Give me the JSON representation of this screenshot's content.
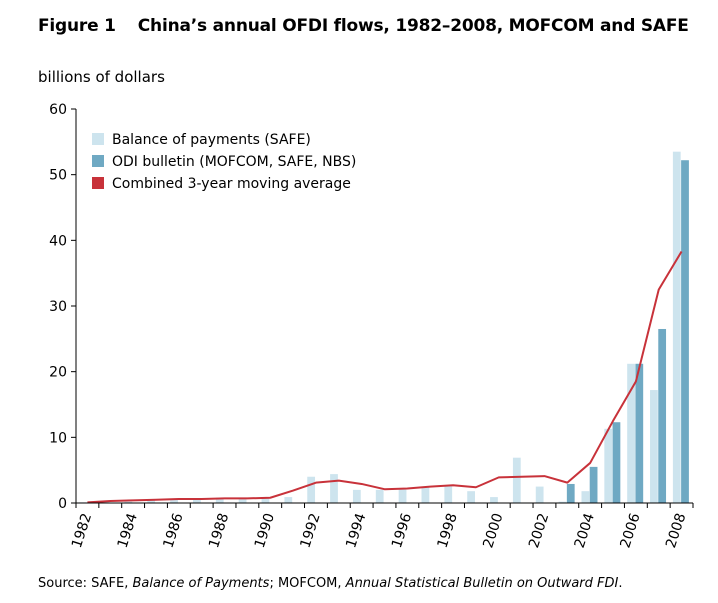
{
  "header": {
    "figure_label": "Figure 1",
    "title": "China’s annual OFDI flows, 1982–2008, MOFCOM and SAFE"
  },
  "y_axis_label": "billions of dollars",
  "source": {
    "prefix": "Source: SAFE, ",
    "bop_title": "Balance of Payments",
    "middle": "; MOFCOM, ",
    "bulletin_title": "Annual Statistical Bulletin on Outward FDI",
    "suffix": "."
  },
  "colors": {
    "safe_bar": "#cde4ee",
    "odi_bar": "#6fa9c3",
    "moving_avg": "#c8323a",
    "axis": "#000000"
  },
  "chart_data": {
    "type": "bar",
    "years": [
      1982,
      1983,
      1984,
      1985,
      1986,
      1987,
      1988,
      1989,
      1990,
      1991,
      1992,
      1993,
      1994,
      1995,
      1996,
      1997,
      1998,
      1999,
      2000,
      2001,
      2002,
      2003,
      2004,
      2005,
      2006,
      2007,
      2008
    ],
    "x_tick_labels": [
      "1982",
      "1984",
      "1986",
      "1988",
      "1990",
      "1992",
      "1994",
      "1996",
      "1998",
      "2000",
      "2002",
      "2004",
      "2006",
      "2008"
    ],
    "y_ticks": [
      0,
      10,
      20,
      30,
      40,
      50,
      60
    ],
    "ylim": [
      0,
      60
    ],
    "legend_position": "top-left",
    "series": [
      {
        "name": "Balance of payments (SAFE)",
        "kind": "bar",
        "values": [
          0.1,
          0.1,
          0.2,
          0.6,
          0.5,
          0.6,
          0.8,
          0.8,
          0.8,
          0.9,
          4.0,
          4.4,
          2.0,
          2.0,
          2.1,
          2.5,
          2.6,
          1.8,
          0.9,
          6.9,
          2.5,
          0.2,
          1.8,
          11.3,
          21.2,
          17.2,
          53.5
        ]
      },
      {
        "name": "ODI bulletin (MOFCOM, SAFE, NBS)",
        "kind": "bar",
        "values": [
          null,
          null,
          null,
          null,
          null,
          null,
          null,
          null,
          null,
          null,
          null,
          null,
          null,
          null,
          null,
          null,
          null,
          null,
          null,
          null,
          null,
          2.9,
          5.5,
          12.3,
          21.2,
          26.5,
          52.2
        ]
      },
      {
        "name": "Combined 3-year moving average",
        "kind": "line",
        "values": [
          0.1,
          0.3,
          0.4,
          0.5,
          0.6,
          0.6,
          0.7,
          0.7,
          0.8,
          1.9,
          3.1,
          3.4,
          2.9,
          2.1,
          2.2,
          2.5,
          2.7,
          2.4,
          3.9,
          4.0,
          4.1,
          3.1,
          6.1,
          12.5,
          18.5,
          32.5,
          38.3
        ]
      }
    ]
  }
}
